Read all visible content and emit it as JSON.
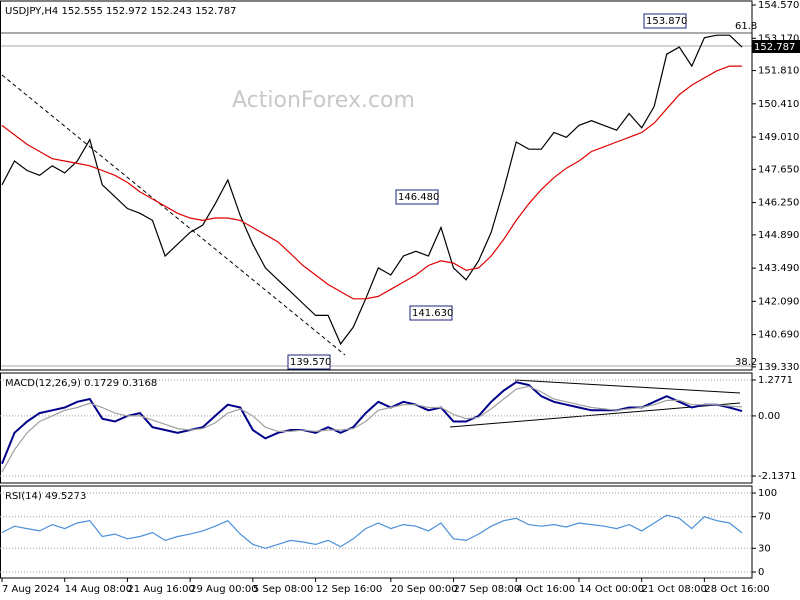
{
  "chart_data": [
    {
      "type": "line",
      "title": "USDJPY,H4  152.555 152.972 152.243 152.787",
      "watermark": "ActionForex.com",
      "categories": [
        "7 Aug 2024",
        null,
        null,
        null,
        null,
        "14 Aug 08:00",
        null,
        null,
        null,
        null,
        "21 Aug 16:00",
        null,
        null,
        null,
        null,
        "29 Aug 00:00",
        null,
        null,
        null,
        null,
        "5 Sep 08:00",
        null,
        null,
        null,
        null,
        "12 Sep 16:00",
        null,
        null,
        null,
        null,
        null,
        "20 Sep 00:00",
        null,
        null,
        null,
        null,
        "27 Sep 08:00",
        null,
        null,
        null,
        null,
        "4 Oct 16:00",
        null,
        null,
        null,
        null,
        "14 Oct 00:00",
        null,
        null,
        null,
        null,
        "21 Oct 08:00",
        null,
        null,
        null,
        null,
        "28 Oct 16:00",
        null,
        null,
        null
      ],
      "series": [
        {
          "color": "#000000",
          "values": [
            147.0,
            148.0,
            147.6,
            147.4,
            147.8,
            147.5,
            148.0,
            148.9,
            147.0,
            146.5,
            146.0,
            145.8,
            145.5,
            144.0,
            144.5,
            145.0,
            145.3,
            146.2,
            147.2,
            145.7,
            144.5,
            143.5,
            143.0,
            142.5,
            142.0,
            141.5,
            141.5,
            140.3,
            141.0,
            142.2,
            143.5,
            143.2,
            144.0,
            144.2,
            144.0,
            145.2,
            143.5,
            143.0,
            143.8,
            145.0,
            146.8,
            148.8,
            148.5,
            148.5,
            149.2,
            149.0,
            149.5,
            149.7,
            149.5,
            149.3,
            150.0,
            149.4,
            150.3,
            152.5,
            152.8,
            152.0,
            153.2,
            153.3,
            153.3,
            152.8
          ]
        },
        {
          "color": "#e00000",
          "values": [
            149.5,
            149.1,
            148.7,
            148.4,
            148.1,
            148.0,
            147.9,
            147.8,
            147.6,
            147.4,
            147.1,
            146.7,
            146.4,
            146.1,
            145.8,
            145.6,
            145.5,
            145.6,
            145.6,
            145.5,
            145.2,
            144.9,
            144.6,
            144.1,
            143.6,
            143.2,
            142.8,
            142.5,
            142.2,
            142.2,
            142.3,
            142.6,
            142.9,
            143.2,
            143.6,
            143.8,
            143.7,
            143.4,
            143.5,
            144.0,
            144.7,
            145.5,
            146.2,
            146.8,
            147.3,
            147.7,
            148.0,
            148.4,
            148.6,
            148.8,
            149.0,
            149.2,
            149.6,
            150.2,
            150.8,
            151.2,
            151.5,
            151.8,
            152.0,
            152.0
          ]
        }
      ],
      "ylim": [
        139.2,
        154.74
      ],
      "yticks": [
        {
          "value": 154.57,
          "label": "154.570"
        },
        {
          "value": 153.17,
          "label": "153.170"
        },
        {
          "value": 151.81,
          "label": "151.810"
        },
        {
          "value": 150.41,
          "label": "150.410"
        },
        {
          "value": 149.01,
          "label": "149.010"
        },
        {
          "value": 147.65,
          "label": "147.650"
        },
        {
          "value": 146.25,
          "label": "146.250"
        },
        {
          "value": 144.89,
          "label": "144.890"
        },
        {
          "value": 143.49,
          "label": "143.490"
        },
        {
          "value": 142.09,
          "label": "142.090"
        },
        {
          "value": 140.69,
          "label": "140.690"
        },
        {
          "value": 139.33,
          "label": "139.330"
        }
      ],
      "last_price": "152.787",
      "annotations": [
        "153.870",
        "146.480",
        "141.630",
        "139.570",
        "61.8",
        "38.2"
      ],
      "grid": false
    },
    {
      "type": "line",
      "title": "MACD(12,26,9) 0.1729 0.3168",
      "series": [
        {
          "color": "#00008b",
          "values": [
            -1.7,
            -0.6,
            -0.2,
            0.1,
            0.2,
            0.3,
            0.5,
            0.6,
            -0.1,
            -0.2,
            0.0,
            0.1,
            -0.4,
            -0.5,
            -0.6,
            -0.5,
            -0.4,
            0.0,
            0.4,
            0.3,
            -0.5,
            -0.8,
            -0.6,
            -0.5,
            -0.5,
            -0.6,
            -0.4,
            -0.6,
            -0.4,
            0.1,
            0.5,
            0.3,
            0.5,
            0.4,
            0.2,
            0.3,
            -0.2,
            -0.2,
            0.0,
            0.5,
            0.9,
            1.2,
            1.1,
            0.7,
            0.5,
            0.4,
            0.3,
            0.2,
            0.2,
            0.2,
            0.3,
            0.3,
            0.5,
            0.7,
            0.5,
            0.3,
            0.4,
            0.4,
            0.3,
            0.17
          ]
        },
        {
          "color": "#a0a0a0",
          "values": [
            -2.0,
            -1.2,
            -0.6,
            -0.2,
            0.0,
            0.2,
            0.3,
            0.45,
            0.3,
            0.1,
            0.0,
            0.0,
            -0.15,
            -0.3,
            -0.45,
            -0.5,
            -0.45,
            -0.25,
            0.1,
            0.25,
            0.0,
            -0.4,
            -0.55,
            -0.55,
            -0.5,
            -0.55,
            -0.5,
            -0.5,
            -0.45,
            -0.2,
            0.2,
            0.3,
            0.4,
            0.4,
            0.3,
            0.3,
            0.05,
            -0.1,
            -0.05,
            0.25,
            0.6,
            0.95,
            1.05,
            0.85,
            0.6,
            0.5,
            0.4,
            0.3,
            0.25,
            0.2,
            0.25,
            0.3,
            0.4,
            0.55,
            0.55,
            0.4,
            0.4,
            0.4,
            0.35,
            0.32
          ]
        }
      ],
      "ylim": [
        -2.386,
        1.526
      ],
      "yticks": [
        1.2771,
        {
          "value": 0,
          "label": "0.00"
        },
        -2.1371
      ],
      "grid": true
    },
    {
      "type": "line",
      "title": "RSI(14) 49.5273",
      "series": [
        {
          "color": "#4a90d9",
          "values": [
            50,
            58,
            55,
            52,
            60,
            55,
            62,
            65,
            45,
            48,
            42,
            45,
            50,
            40,
            45,
            48,
            52,
            58,
            65,
            48,
            35,
            30,
            35,
            40,
            38,
            35,
            40,
            32,
            42,
            55,
            62,
            55,
            60,
            58,
            52,
            62,
            42,
            40,
            48,
            58,
            65,
            68,
            60,
            58,
            60,
            57,
            62,
            60,
            58,
            55,
            60,
            52,
            62,
            72,
            68,
            55,
            70,
            65,
            62,
            49.5
          ]
        }
      ],
      "ylim": [
        -7.6,
        108.9
      ],
      "yticks": [
        100,
        70,
        30,
        0
      ],
      "grid": true
    }
  ]
}
